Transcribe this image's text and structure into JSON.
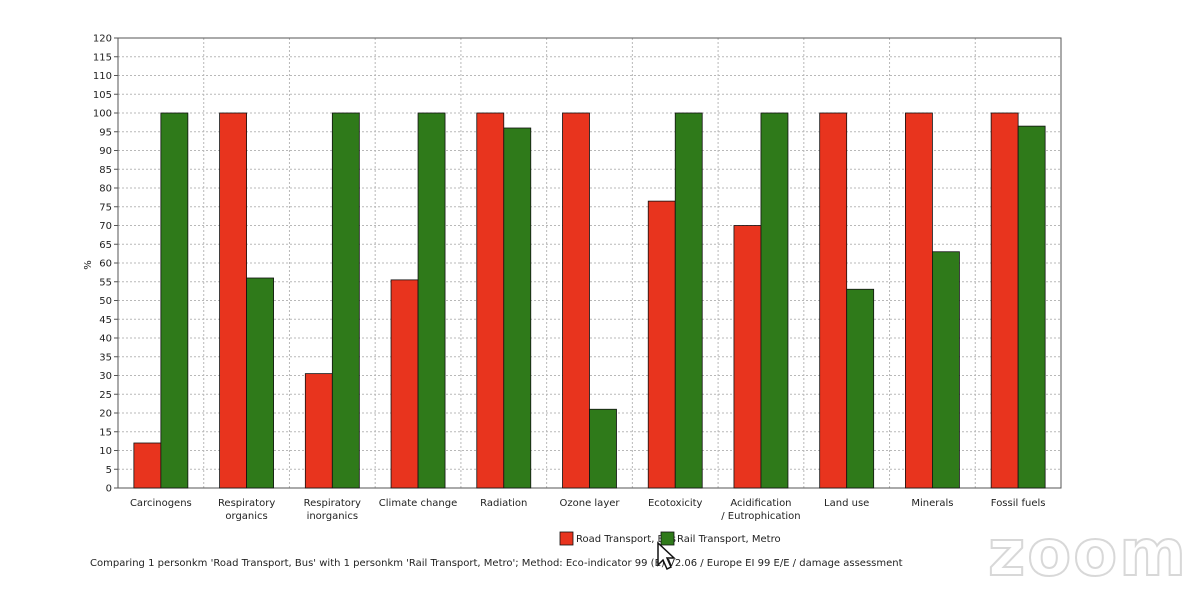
{
  "colors": {
    "road": "#e8341e",
    "rail": "#2f7a1a",
    "grid": "#b8b8b8",
    "axis": "#555555"
  },
  "chart_data": {
    "type": "bar",
    "ylabel": "%",
    "ylim": [
      0,
      120
    ],
    "ytick_step": 5,
    "grid": true,
    "legend_position": "bottom",
    "categories": [
      [
        "Carcinogens"
      ],
      [
        "Respiratory",
        "organics"
      ],
      [
        "Respiratory",
        "inorganics"
      ],
      [
        "Climate change"
      ],
      [
        "Radiation"
      ],
      [
        "Ozone layer"
      ],
      [
        "Ecotoxicity"
      ],
      [
        "Acidification",
        "/ Eutrophication"
      ],
      [
        "Land use"
      ],
      [
        "Minerals"
      ],
      [
        "Fossil fuels"
      ]
    ],
    "series": [
      {
        "name": "Road Transport, Bus",
        "values": [
          12,
          100,
          30.5,
          55.5,
          100,
          100,
          76.5,
          70,
          100,
          100,
          100
        ]
      },
      {
        "name": "Rail Transport, Metro",
        "values": [
          100,
          56,
          100,
          100,
          96,
          21,
          100,
          100,
          53,
          63,
          96.5
        ]
      }
    ]
  },
  "caption": "Comparing 1 personkm 'Road Transport, Bus' with 1 personkm 'Rail Transport, Metro';  Method: Eco-indicator 99 (E) V2.06 / Europe EI 99 E/E / damage assessment",
  "watermark": "zoom",
  "icons": {
    "cursor": "mouse-pointer-icon"
  }
}
